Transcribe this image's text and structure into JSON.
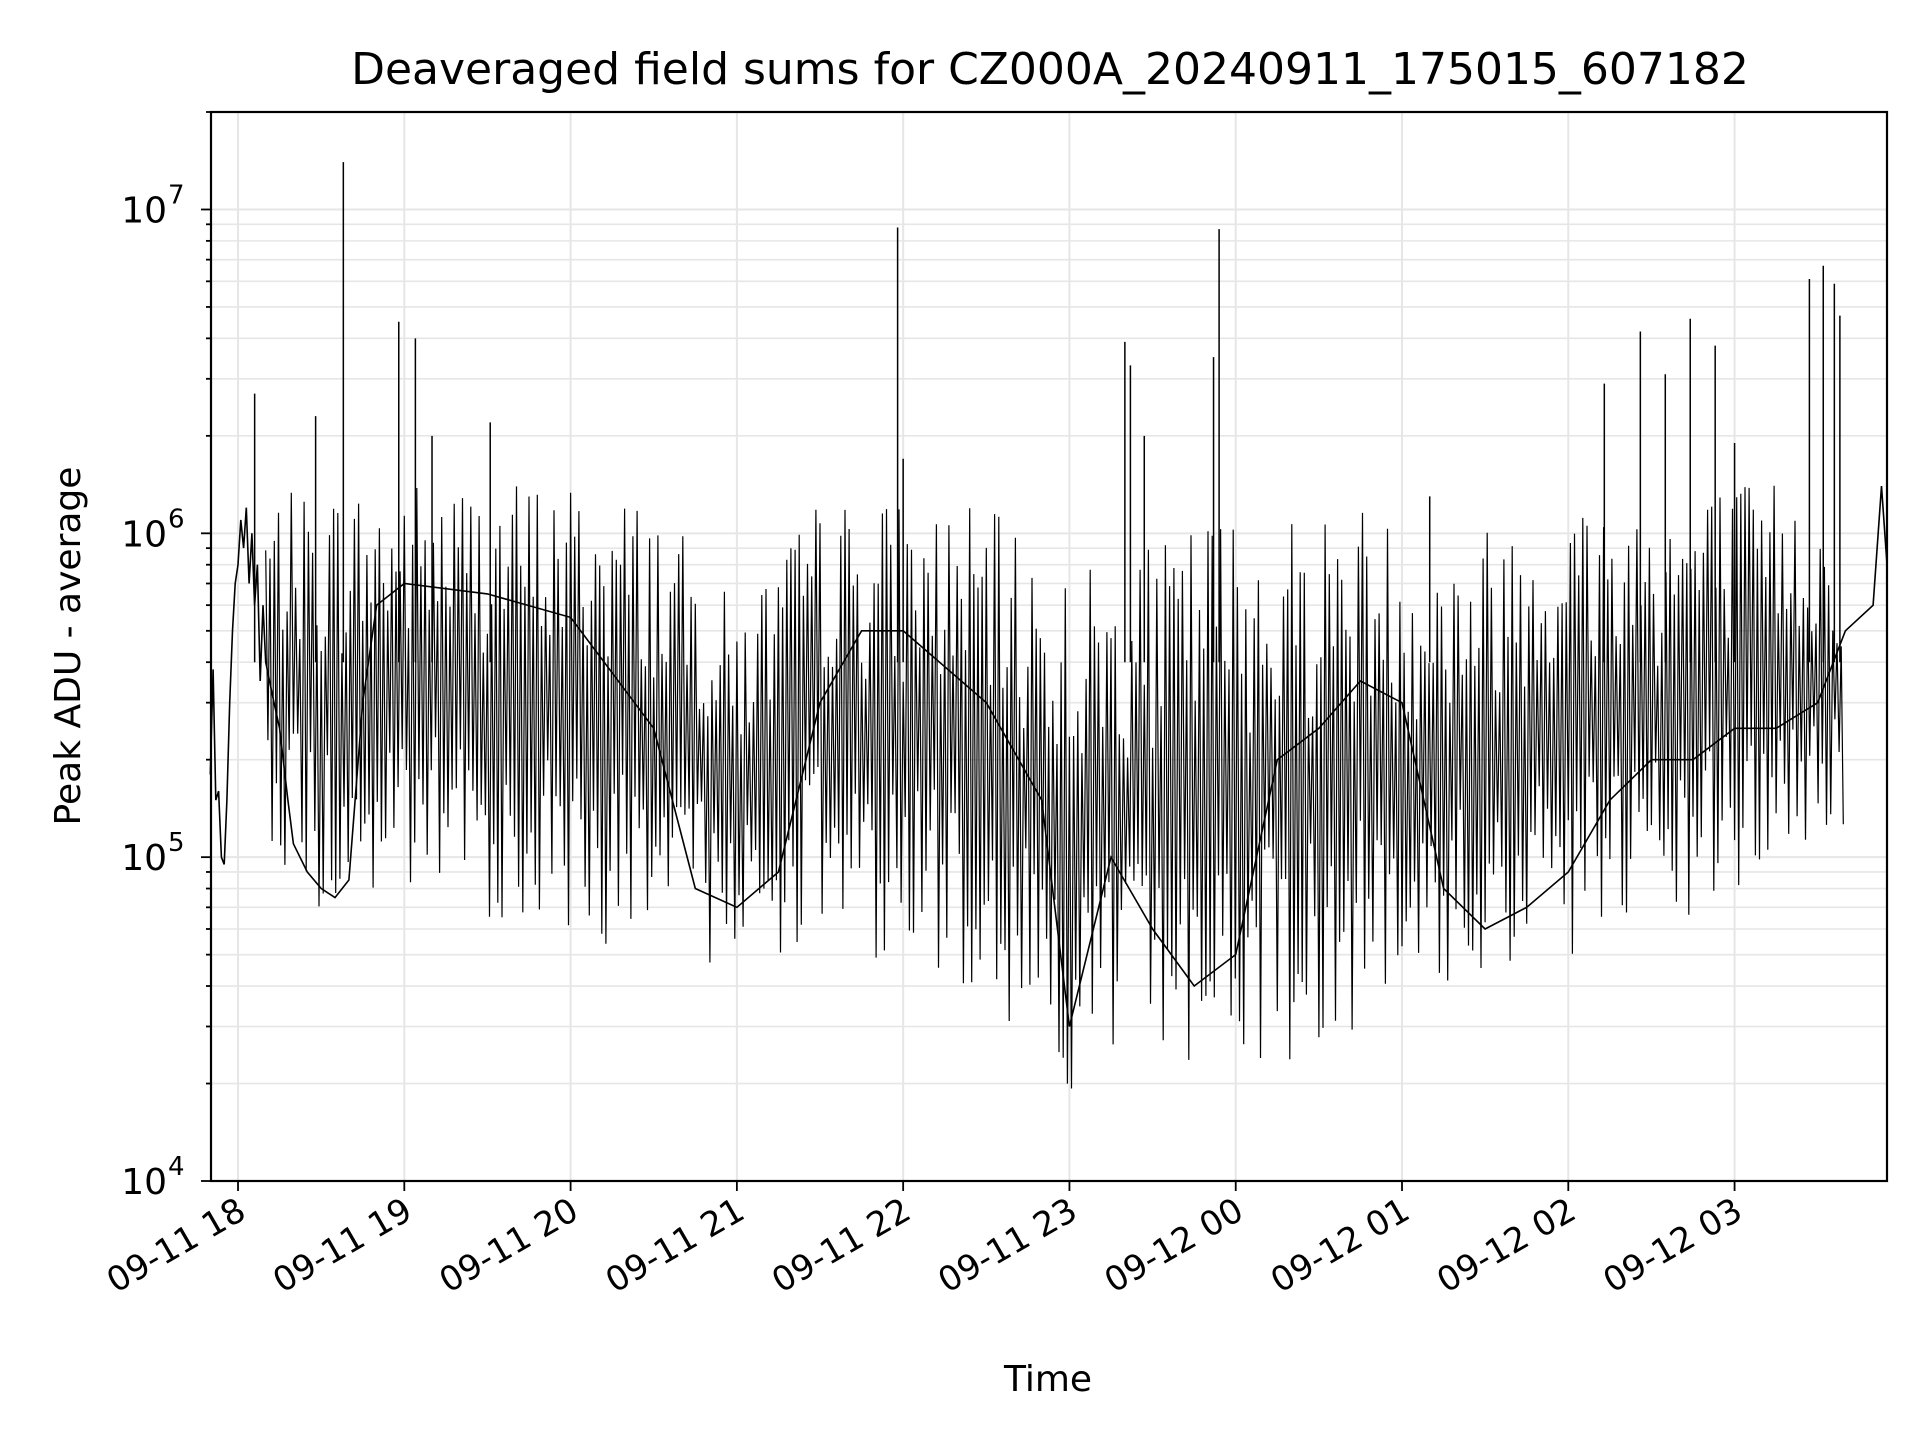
{
  "chart_data": {
    "type": "line",
    "title": "Deaveraged field sums for CZ000A_20240911_175015_607182",
    "xlabel": "Time",
    "ylabel": "Peak ADU - average",
    "yscale": "log",
    "ylim": [
      10000,
      20000000
    ],
    "xlim": [
      "2024-09-11 17:50:15",
      "2024-09-12 03:55:00"
    ],
    "grid": true,
    "grid_color": "#e6e6e6",
    "line_color": "#000000",
    "x_ticks": [
      {
        "t": "2024-09-11 18:00",
        "label": "09-11 18"
      },
      {
        "t": "2024-09-11 19:00",
        "label": "09-11 19"
      },
      {
        "t": "2024-09-11 20:00",
        "label": "09-11 20"
      },
      {
        "t": "2024-09-11 21:00",
        "label": "09-11 21"
      },
      {
        "t": "2024-09-11 22:00",
        "label": "09-11 22"
      },
      {
        "t": "2024-09-11 23:00",
        "label": "09-11 23"
      },
      {
        "t": "2024-09-12 00:00",
        "label": "09-12 00"
      },
      {
        "t": "2024-09-12 01:00",
        "label": "09-12 01"
      },
      {
        "t": "2024-09-12 02:00",
        "label": "09-12 02"
      },
      {
        "t": "2024-09-12 03:00",
        "label": "09-12 03"
      }
    ],
    "y_ticks": [
      {
        "value": 10000,
        "base": "10",
        "exp": "4"
      },
      {
        "value": 100000,
        "base": "10",
        "exp": "5"
      },
      {
        "value": 1000000,
        "base": "10",
        "exp": "6"
      },
      {
        "value": 10000000,
        "base": "10",
        "exp": "7"
      }
    ],
    "series": [
      {
        "points": [
          [
            "2024-09-11 17:50",
            180000
          ],
          [
            "2024-09-11 17:51",
            380000
          ],
          [
            "2024-09-11 17:52",
            150000
          ],
          [
            "2024-09-11 17:53",
            160000
          ],
          [
            "2024-09-11 17:54",
            100000
          ],
          [
            "2024-09-11 17:55",
            95000
          ],
          [
            "2024-09-11 17:56",
            150000
          ],
          [
            "2024-09-11 17:57",
            300000
          ],
          [
            "2024-09-11 17:58",
            500000
          ],
          [
            "2024-09-11 17:59",
            700000
          ],
          [
            "2024-09-11 18:00",
            800000
          ],
          [
            "2024-09-11 18:01",
            1100000
          ],
          [
            "2024-09-11 18:02",
            900000
          ],
          [
            "2024-09-11 18:03",
            1200000
          ],
          [
            "2024-09-11 18:04",
            700000
          ],
          [
            "2024-09-11 18:05",
            1000000
          ],
          [
            "2024-09-11 18:06",
            600000
          ],
          [
            "2024-09-11 18:07",
            800000
          ],
          [
            "2024-09-11 18:08",
            350000
          ],
          [
            "2024-09-11 18:09",
            600000
          ],
          [
            "2024-09-11 18:10",
            400000
          ],
          [
            "2024-09-11 18:13",
            300000
          ],
          [
            "2024-09-11 18:15",
            250000
          ],
          [
            "2024-09-11 18:18",
            150000
          ],
          [
            "2024-09-11 18:20",
            110000
          ],
          [
            "2024-09-11 18:25",
            90000
          ],
          [
            "2024-09-11 18:30",
            80000
          ],
          [
            "2024-09-11 18:35",
            75000
          ],
          [
            "2024-09-11 18:40",
            85000
          ],
          [
            "2024-09-11 18:45",
            300000
          ],
          [
            "2024-09-11 18:50",
            600000
          ],
          [
            "2024-09-11 19:00",
            700000
          ],
          [
            "2024-09-11 19:30",
            650000
          ],
          [
            "2024-09-11 20:00",
            550000
          ],
          [
            "2024-09-11 20:30",
            250000
          ],
          [
            "2024-09-11 20:45",
            80000
          ],
          [
            "2024-09-11 21:00",
            70000
          ],
          [
            "2024-09-11 21:15",
            90000
          ],
          [
            "2024-09-11 21:30",
            300000
          ],
          [
            "2024-09-11 21:45",
            500000
          ],
          [
            "2024-09-11 22:00",
            500000
          ],
          [
            "2024-09-11 22:30",
            300000
          ],
          [
            "2024-09-11 22:50",
            150000
          ],
          [
            "2024-09-11 23:00",
            30000
          ],
          [
            "2024-09-11 23:15",
            100000
          ],
          [
            "2024-09-11 23:30",
            60000
          ],
          [
            "2024-09-11 23:45",
            40000
          ],
          [
            "2024-09-12 00:00",
            50000
          ],
          [
            "2024-09-12 00:15",
            200000
          ],
          [
            "2024-09-12 00:30",
            250000
          ],
          [
            "2024-09-12 00:45",
            350000
          ],
          [
            "2024-09-12 01:00",
            300000
          ],
          [
            "2024-09-12 01:15",
            80000
          ],
          [
            "2024-09-12 01:30",
            60000
          ],
          [
            "2024-09-12 01:45",
            70000
          ],
          [
            "2024-09-12 02:00",
            90000
          ],
          [
            "2024-09-12 02:15",
            150000
          ],
          [
            "2024-09-12 02:30",
            200000
          ],
          [
            "2024-09-12 02:45",
            200000
          ],
          [
            "2024-09-12 03:00",
            250000
          ],
          [
            "2024-09-12 03:15",
            250000
          ],
          [
            "2024-09-12 03:30",
            300000
          ],
          [
            "2024-09-12 03:40",
            500000
          ],
          [
            "2024-09-12 03:50",
            600000
          ],
          [
            "2024-09-12 03:53",
            1400000
          ],
          [
            "2024-09-12 03:55",
            800000
          ]
        ],
        "envelope": [
          [
            "2024-09-11 18:10",
            120000,
            1300000
          ],
          [
            "2024-09-11 18:30",
            60000,
            1400000
          ],
          [
            "2024-09-11 19:00",
            70000,
            1500000
          ],
          [
            "2024-09-11 19:30",
            65000,
            1500000
          ],
          [
            "2024-09-11 20:00",
            55000,
            1500000
          ],
          [
            "2024-09-11 20:30",
            50000,
            1300000
          ],
          [
            "2024-09-11 21:00",
            45000,
            600000
          ],
          [
            "2024-09-11 21:30",
            55000,
            1300000
          ],
          [
            "2024-09-11 22:00",
            45000,
            1300000
          ],
          [
            "2024-09-11 22:30",
            38000,
            1200000
          ],
          [
            "2024-09-11 23:00",
            18000,
            800000
          ],
          [
            "2024-09-11 23:30",
            25000,
            900000
          ],
          [
            "2024-09-11 23:50",
            22000,
            1200000
          ],
          [
            "2024-09-12 00:15",
            22000,
            1200000
          ],
          [
            "2024-09-12 00:45",
            30000,
            1300000
          ],
          [
            "2024-09-12 01:15",
            38000,
            900000
          ],
          [
            "2024-09-12 01:45",
            45000,
            1300000
          ],
          [
            "2024-09-12 02:15",
            50000,
            1400000
          ],
          [
            "2024-09-12 02:45",
            60000,
            1400000
          ],
          [
            "2024-09-12 03:15",
            90000,
            1500000
          ],
          [
            "2024-09-12 03:40",
            120000,
            1000000
          ]
        ],
        "spikes": [
          [
            "2024-09-11 18:06",
            2700000
          ],
          [
            "2024-09-11 18:28",
            2300000
          ],
          [
            "2024-09-11 18:38",
            14000000
          ],
          [
            "2024-09-11 18:58",
            4500000
          ],
          [
            "2024-09-11 19:04",
            4000000
          ],
          [
            "2024-09-11 19:10",
            2000000
          ],
          [
            "2024-09-11 19:31",
            2200000
          ],
          [
            "2024-09-11 21:58",
            8800000
          ],
          [
            "2024-09-11 22:00",
            1700000
          ],
          [
            "2024-09-11 23:20",
            3900000
          ],
          [
            "2024-09-11 23:22",
            3300000
          ],
          [
            "2024-09-11 23:27",
            2000000
          ],
          [
            "2024-09-11 23:52",
            3500000
          ],
          [
            "2024-09-11 23:54",
            8700000
          ],
          [
            "2024-09-12 01:10",
            1300000
          ],
          [
            "2024-09-12 02:13",
            2900000
          ],
          [
            "2024-09-12 02:26",
            4200000
          ],
          [
            "2024-09-12 02:35",
            3100000
          ],
          [
            "2024-09-12 02:44",
            4600000
          ],
          [
            "2024-09-12 02:53",
            3800000
          ],
          [
            "2024-09-12 03:00",
            1900000
          ],
          [
            "2024-09-12 03:27",
            6100000
          ],
          [
            "2024-09-12 03:32",
            6700000
          ],
          [
            "2024-09-12 03:36",
            5900000
          ],
          [
            "2024-09-12 03:38",
            4700000
          ]
        ]
      }
    ]
  }
}
